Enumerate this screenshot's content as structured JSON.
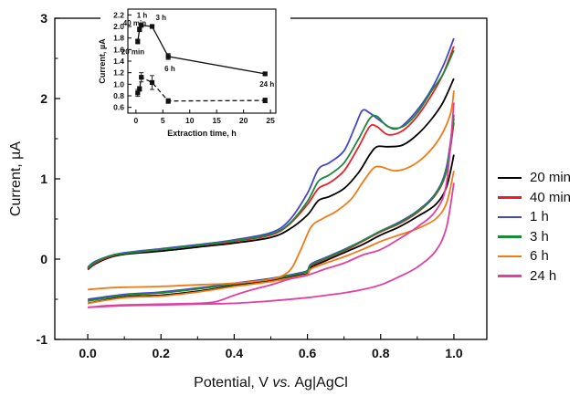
{
  "chart_data": [
    {
      "type": "line",
      "title": "",
      "xlabel_parts": [
        "Potential, V ",
        "vs.",
        " Ag|AgCl"
      ],
      "ylabel": "Current, µA",
      "xlim": [
        -0.09,
        1.09
      ],
      "ylim": [
        -1,
        3
      ],
      "xticks": [
        "0.0",
        "0.2",
        "0.4",
        "0.6",
        "0.8",
        "1.0"
      ],
      "yticks": [
        "-1",
        "0",
        "1",
        "2",
        "3"
      ],
      "legend_position": "right",
      "series": [
        {
          "name": "20 min",
          "color": "#000000",
          "forward": [
            [
              0,
              -0.13
            ],
            [
              0.02,
              -0.06
            ],
            [
              0.06,
              0.02
            ],
            [
              0.1,
              0.06
            ],
            [
              0.2,
              0.1
            ],
            [
              0.3,
              0.15
            ],
            [
              0.4,
              0.2
            ],
            [
              0.5,
              0.27
            ],
            [
              0.55,
              0.37
            ],
            [
              0.6,
              0.55
            ],
            [
              0.63,
              0.73
            ],
            [
              0.66,
              0.78
            ],
            [
              0.7,
              0.88
            ],
            [
              0.74,
              1.08
            ],
            [
              0.77,
              1.3
            ],
            [
              0.79,
              1.4
            ],
            [
              0.82,
              1.4
            ],
            [
              0.86,
              1.42
            ],
            [
              0.9,
              1.55
            ],
            [
              0.94,
              1.75
            ],
            [
              0.97,
              1.95
            ],
            [
              1.0,
              2.25
            ]
          ],
          "reverse": [
            [
              1.0,
              1.3
            ],
            [
              0.98,
              0.9
            ],
            [
              0.95,
              0.68
            ],
            [
              0.9,
              0.53
            ],
            [
              0.85,
              0.4
            ],
            [
              0.8,
              0.3
            ],
            [
              0.75,
              0.18
            ],
            [
              0.7,
              0.08
            ],
            [
              0.65,
              -0.02
            ],
            [
              0.61,
              -0.1
            ],
            [
              0.6,
              -0.18
            ],
            [
              0.58,
              -0.2
            ],
            [
              0.5,
              -0.27
            ],
            [
              0.4,
              -0.33
            ],
            [
              0.3,
              -0.4
            ],
            [
              0.2,
              -0.45
            ],
            [
              0.1,
              -0.47
            ],
            [
              0.0,
              -0.55
            ]
          ]
        },
        {
          "name": "40 min",
          "color": "#e8202a",
          "forward": [
            [
              0,
              -0.12
            ],
            [
              0.02,
              -0.05
            ],
            [
              0.06,
              0.03
            ],
            [
              0.1,
              0.07
            ],
            [
              0.2,
              0.12
            ],
            [
              0.3,
              0.17
            ],
            [
              0.4,
              0.22
            ],
            [
              0.5,
              0.3
            ],
            [
              0.55,
              0.43
            ],
            [
              0.6,
              0.68
            ],
            [
              0.63,
              0.88
            ],
            [
              0.66,
              0.95
            ],
            [
              0.7,
              1.1
            ],
            [
              0.74,
              1.4
            ],
            [
              0.77,
              1.65
            ],
            [
              0.79,
              1.65
            ],
            [
              0.82,
              1.55
            ],
            [
              0.86,
              1.6
            ],
            [
              0.9,
              1.78
            ],
            [
              0.94,
              2.05
            ],
            [
              0.97,
              2.3
            ],
            [
              1.0,
              2.65
            ]
          ],
          "reverse": [
            [
              1.0,
              1.7
            ],
            [
              0.98,
              1.1
            ],
            [
              0.95,
              0.8
            ],
            [
              0.9,
              0.58
            ],
            [
              0.85,
              0.44
            ],
            [
              0.8,
              0.34
            ],
            [
              0.75,
              0.22
            ],
            [
              0.7,
              0.1
            ],
            [
              0.65,
              0.0
            ],
            [
              0.61,
              -0.08
            ],
            [
              0.6,
              -0.15
            ],
            [
              0.58,
              -0.18
            ],
            [
              0.5,
              -0.25
            ],
            [
              0.4,
              -0.31
            ],
            [
              0.3,
              -0.37
            ],
            [
              0.2,
              -0.42
            ],
            [
              0.1,
              -0.45
            ],
            [
              0.0,
              -0.52
            ]
          ]
        },
        {
          "name": "1 h",
          "color": "#4646c8",
          "forward": [
            [
              0,
              -0.1
            ],
            [
              0.02,
              -0.03
            ],
            [
              0.06,
              0.04
            ],
            [
              0.1,
              0.08
            ],
            [
              0.2,
              0.13
            ],
            [
              0.3,
              0.18
            ],
            [
              0.4,
              0.24
            ],
            [
              0.5,
              0.33
            ],
            [
              0.55,
              0.48
            ],
            [
              0.6,
              0.82
            ],
            [
              0.63,
              1.12
            ],
            [
              0.66,
              1.2
            ],
            [
              0.7,
              1.35
            ],
            [
              0.73,
              1.65
            ],
            [
              0.75,
              1.85
            ],
            [
              0.77,
              1.82
            ],
            [
              0.8,
              1.72
            ],
            [
              0.84,
              1.62
            ],
            [
              0.88,
              1.75
            ],
            [
              0.93,
              2.05
            ],
            [
              0.97,
              2.4
            ],
            [
              1.0,
              2.75
            ]
          ],
          "reverse": [
            [
              1.0,
              1.8
            ],
            [
              0.98,
              1.15
            ],
            [
              0.95,
              0.82
            ],
            [
              0.9,
              0.6
            ],
            [
              0.85,
              0.46
            ],
            [
              0.8,
              0.35
            ],
            [
              0.75,
              0.23
            ],
            [
              0.7,
              0.12
            ],
            [
              0.65,
              0.02
            ],
            [
              0.61,
              -0.06
            ],
            [
              0.6,
              -0.14
            ],
            [
              0.58,
              -0.17
            ],
            [
              0.5,
              -0.24
            ],
            [
              0.4,
              -0.3
            ],
            [
              0.3,
              -0.36
            ],
            [
              0.2,
              -0.41
            ],
            [
              0.1,
              -0.44
            ],
            [
              0.0,
              -0.5
            ]
          ]
        },
        {
          "name": "3 h",
          "color": "#1a8a3a",
          "forward": [
            [
              0,
              -0.11
            ],
            [
              0.02,
              -0.04
            ],
            [
              0.06,
              0.04
            ],
            [
              0.1,
              0.07
            ],
            [
              0.2,
              0.12
            ],
            [
              0.3,
              0.17
            ],
            [
              0.4,
              0.23
            ],
            [
              0.5,
              0.31
            ],
            [
              0.55,
              0.44
            ],
            [
              0.6,
              0.72
            ],
            [
              0.63,
              0.97
            ],
            [
              0.66,
              1.05
            ],
            [
              0.7,
              1.2
            ],
            [
              0.74,
              1.5
            ],
            [
              0.77,
              1.75
            ],
            [
              0.79,
              1.78
            ],
            [
              0.82,
              1.65
            ],
            [
              0.86,
              1.65
            ],
            [
              0.9,
              1.82
            ],
            [
              0.94,
              2.1
            ],
            [
              0.97,
              2.3
            ],
            [
              1.0,
              2.6
            ]
          ],
          "reverse": [
            [
              1.0,
              1.75
            ],
            [
              0.98,
              1.12
            ],
            [
              0.95,
              0.81
            ],
            [
              0.9,
              0.59
            ],
            [
              0.85,
              0.45
            ],
            [
              0.8,
              0.35
            ],
            [
              0.75,
              0.23
            ],
            [
              0.7,
              0.11
            ],
            [
              0.65,
              0.01
            ],
            [
              0.61,
              -0.07
            ],
            [
              0.6,
              -0.15
            ],
            [
              0.58,
              -0.18
            ],
            [
              0.5,
              -0.25
            ],
            [
              0.4,
              -0.31
            ],
            [
              0.3,
              -0.37
            ],
            [
              0.2,
              -0.42
            ],
            [
              0.1,
              -0.45
            ],
            [
              0.0,
              -0.52
            ]
          ]
        },
        {
          "name": "6 h",
          "color": "#f07a18",
          "forward": [
            [
              0,
              -0.38
            ],
            [
              0.05,
              -0.36
            ],
            [
              0.1,
              -0.35
            ],
            [
              0.2,
              -0.34
            ],
            [
              0.3,
              -0.32
            ],
            [
              0.4,
              -0.3
            ],
            [
              0.5,
              -0.25
            ],
            [
              0.55,
              -0.15
            ],
            [
              0.58,
              0.1
            ],
            [
              0.61,
              0.4
            ],
            [
              0.64,
              0.5
            ],
            [
              0.68,
              0.6
            ],
            [
              0.72,
              0.75
            ],
            [
              0.75,
              0.95
            ],
            [
              0.78,
              1.13
            ],
            [
              0.8,
              1.15
            ],
            [
              0.84,
              1.1
            ],
            [
              0.88,
              1.15
            ],
            [
              0.92,
              1.28
            ],
            [
              0.96,
              1.5
            ],
            [
              0.99,
              1.8
            ],
            [
              1.0,
              2.1
            ]
          ],
          "reverse": [
            [
              1.0,
              1.1
            ],
            [
              0.98,
              0.7
            ],
            [
              0.95,
              0.5
            ],
            [
              0.9,
              0.38
            ],
            [
              0.85,
              0.3
            ],
            [
              0.8,
              0.22
            ],
            [
              0.75,
              0.12
            ],
            [
              0.7,
              0.03
            ],
            [
              0.65,
              -0.05
            ],
            [
              0.61,
              -0.12
            ],
            [
              0.6,
              -0.19
            ],
            [
              0.58,
              -0.21
            ],
            [
              0.5,
              -0.28
            ],
            [
              0.4,
              -0.34
            ],
            [
              0.3,
              -0.41
            ],
            [
              0.2,
              -0.46
            ],
            [
              0.1,
              -0.48
            ],
            [
              0.0,
              -0.55
            ]
          ]
        },
        {
          "name": "24 h",
          "color": "#e040a0",
          "forward": [
            [
              0,
              -0.6
            ],
            [
              0.05,
              -0.58
            ],
            [
              0.1,
              -0.57
            ],
            [
              0.2,
              -0.56
            ],
            [
              0.3,
              -0.55
            ],
            [
              0.35,
              -0.53
            ],
            [
              0.4,
              -0.45
            ],
            [
              0.45,
              -0.38
            ],
            [
              0.5,
              -0.32
            ],
            [
              0.55,
              -0.25
            ],
            [
              0.6,
              -0.2
            ],
            [
              0.65,
              -0.12
            ],
            [
              0.7,
              -0.05
            ],
            [
              0.75,
              0.05
            ],
            [
              0.8,
              0.12
            ],
            [
              0.85,
              0.25
            ],
            [
              0.9,
              0.4
            ],
            [
              0.95,
              0.6
            ],
            [
              0.98,
              0.95
            ],
            [
              1.0,
              1.95
            ]
          ],
          "reverse": [
            [
              1.0,
              0.95
            ],
            [
              0.98,
              0.4
            ],
            [
              0.95,
              0.1
            ],
            [
              0.9,
              -0.1
            ],
            [
              0.85,
              -0.22
            ],
            [
              0.8,
              -0.32
            ],
            [
              0.75,
              -0.38
            ],
            [
              0.7,
              -0.42
            ],
            [
              0.65,
              -0.45
            ],
            [
              0.6,
              -0.48
            ],
            [
              0.5,
              -0.52
            ],
            [
              0.4,
              -0.55
            ],
            [
              0.3,
              -0.56
            ],
            [
              0.2,
              -0.57
            ],
            [
              0.1,
              -0.58
            ],
            [
              0.0,
              -0.6
            ]
          ]
        }
      ]
    },
    {
      "type": "scatter",
      "title": "",
      "xlabel": "Extraction time, h",
      "ylabel": "Current, µA",
      "xlim": [
        -1.5,
        26
      ],
      "ylim": [
        0.5,
        2.3
      ],
      "xticks": [
        "0",
        "5",
        "10",
        "15",
        "20",
        "25"
      ],
      "yticks": [
        "0.6",
        "0.8",
        "1.0",
        "1.2",
        "1.4",
        "1.6",
        "1.8",
        "2.0",
        "2.2"
      ],
      "series": [
        {
          "line_style": "solid",
          "points": [
            {
              "x": 0.33,
              "y": 1.74,
              "err": 0.04,
              "label": "20 min"
            },
            {
              "x": 0.67,
              "y": 1.95,
              "err": 0.04,
              "label": "40 min"
            },
            {
              "x": 1,
              "y": 2.02,
              "err": 0.03,
              "label": "1 h"
            },
            {
              "x": 3,
              "y": 2.0,
              "err": 0.02,
              "label": "3 h"
            },
            {
              "x": 6,
              "y": 1.48,
              "err": 0.05,
              "label": "6 h"
            },
            {
              "x": 24,
              "y": 1.18,
              "err": 0.02,
              "label": "24 h"
            }
          ]
        },
        {
          "line_style": "dashed",
          "points": [
            {
              "x": 0.33,
              "y": 0.85,
              "err": 0.06
            },
            {
              "x": 0.67,
              "y": 0.92,
              "err": 0.04
            },
            {
              "x": 1,
              "y": 1.12,
              "err": 0.08
            },
            {
              "x": 3,
              "y": 1.03,
              "err": 0.12
            },
            {
              "x": 6,
              "y": 0.71,
              "err": 0.04
            },
            {
              "x": 24,
              "y": 0.72,
              "err": 0.04
            }
          ]
        }
      ]
    }
  ]
}
